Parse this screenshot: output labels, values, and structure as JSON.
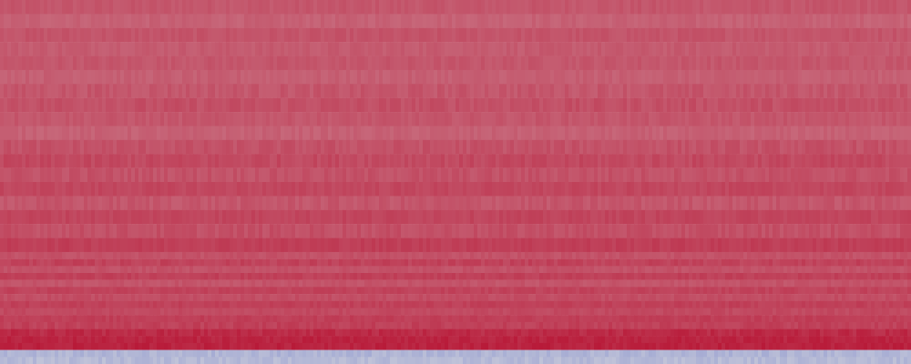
{
  "chart_data": {
    "type": "heatmap",
    "title": "",
    "xlabel": "",
    "ylabel": "",
    "colormap": "coolwarm",
    "color_scale": {
      "low": "#3b4cc0",
      "mid": "#dddddd",
      "high": "#b40426"
    },
    "value_range": [
      -1,
      1
    ],
    "n_columns": 250,
    "rows": [
      {
        "row": 1,
        "mean": 0.62,
        "variation": 0.03
      },
      {
        "row": 2,
        "mean": 0.57,
        "variation": 0.03
      },
      {
        "row": 3,
        "mean": 0.63,
        "variation": 0.03
      },
      {
        "row": 4,
        "mean": 0.6,
        "variation": 0.03
      },
      {
        "row": 5,
        "mean": 0.62,
        "variation": 0.03
      },
      {
        "row": 6,
        "mean": 0.58,
        "variation": 0.03
      },
      {
        "row": 7,
        "mean": 0.62,
        "variation": 0.04
      },
      {
        "row": 8,
        "mean": 0.65,
        "variation": 0.04
      },
      {
        "row": 9,
        "mean": 0.62,
        "variation": 0.03
      },
      {
        "row": 10,
        "mean": 0.57,
        "variation": 0.03
      },
      {
        "row": 11,
        "mean": 0.64,
        "variation": 0.04
      },
      {
        "row": 12,
        "mean": 0.68,
        "variation": 0.04
      },
      {
        "row": 13,
        "mean": 0.64,
        "variation": 0.04
      },
      {
        "row": 14,
        "mean": 0.69,
        "variation": 0.03
      },
      {
        "row": 15,
        "mean": 0.62,
        "variation": 0.04
      },
      {
        "row": 16,
        "mean": 0.7,
        "variation": 0.03
      },
      {
        "row": 17,
        "mean": 0.65,
        "variation": 0.04
      },
      {
        "row": 18,
        "mean": 0.73,
        "variation": 0.03
      },
      {
        "row": 19,
        "mean": 0.64,
        "variation": 0.03
      },
      {
        "row": 20,
        "mean": 0.71,
        "variation": 0.04
      },
      {
        "row": 21,
        "mean": 0.64,
        "variation": 0.03
      },
      {
        "row": 22,
        "mean": 0.72,
        "variation": 0.03
      },
      {
        "row": 23,
        "mean": 0.63,
        "variation": 0.03
      },
      {
        "row": 24,
        "mean": 0.71,
        "variation": 0.03
      },
      {
        "row": 25,
        "mean": 0.66,
        "variation": 0.03
      },
      {
        "row": 26,
        "mean": 0.72,
        "variation": 0.03
      },
      {
        "row": 27,
        "mean": 0.68,
        "variation": 0.03
      },
      {
        "row": 28,
        "mean": 0.73,
        "variation": 0.03
      },
      {
        "row": 29,
        "mean": 0.72,
        "variation": 0.04
      },
      {
        "row": 30,
        "mean": 0.82,
        "variation": 0.05
      },
      {
        "row": 31,
        "mean": 0.85,
        "variation": 0.04
      },
      {
        "row": 32,
        "mean": 0.86,
        "variation": 0.04
      },
      {
        "row": 33,
        "mean": -0.28,
        "variation": 0.06
      },
      {
        "row": 34,
        "mean": -0.24,
        "variation": 0.06
      }
    ]
  }
}
